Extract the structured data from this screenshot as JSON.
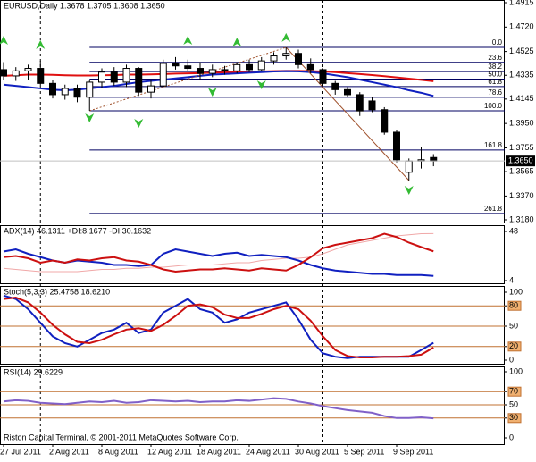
{
  "chart_data": [
    {
      "type": "candlestick",
      "title": "EURUSD,Daily  1.3678 1.3705 1.3608 1.3650",
      "categories": [
        "27 Jul 2011",
        null,
        null,
        null,
        "2 Aug 2011",
        null,
        null,
        null,
        "8 Aug 2011",
        null,
        null,
        null,
        "12 Aug 2011",
        null,
        null,
        null,
        "18 Aug 2011",
        null,
        null,
        null,
        "24 Aug 2011",
        null,
        null,
        null,
        "30 Aug 2011",
        null,
        null,
        null,
        "5 Sep 2011",
        null,
        null,
        null,
        "9 Sep 2011",
        null,
        null,
        null
      ],
      "open": [
        1.438,
        1.433,
        1.437,
        1.439,
        1.427,
        1.418,
        1.423,
        1.416,
        1.428,
        1.436,
        1.428,
        1.439,
        1.42,
        1.425,
        1.443,
        1.441,
        1.439,
        1.435,
        1.438,
        1.437,
        1.442,
        1.438,
        1.445,
        1.449,
        1.451,
        1.442,
        1.438,
        1.427,
        1.422,
        1.418,
        1.413,
        1.406,
        1.388,
        1.356,
        1.365,
        1.3678
      ],
      "high": [
        1.444,
        1.44,
        1.442,
        1.445,
        1.43,
        1.426,
        1.426,
        1.43,
        1.439,
        1.44,
        1.442,
        1.44,
        1.43,
        1.446,
        1.448,
        1.446,
        1.444,
        1.442,
        1.441,
        1.444,
        1.446,
        1.448,
        1.452,
        1.4558,
        1.454,
        1.447,
        1.439,
        1.429,
        1.424,
        1.42,
        1.416,
        1.408,
        1.39,
        1.367,
        1.376,
        1.3705
      ],
      "low": [
        1.43,
        1.429,
        1.43,
        1.425,
        1.415,
        1.414,
        1.412,
        1.4051,
        1.423,
        1.425,
        1.424,
        1.417,
        1.415,
        1.424,
        1.438,
        1.437,
        1.43,
        1.432,
        1.434,
        1.435,
        1.436,
        1.437,
        1.442,
        1.446,
        1.439,
        1.435,
        1.425,
        1.418,
        1.416,
        1.401,
        1.404,
        1.386,
        1.364,
        1.3495,
        1.359,
        1.3608
      ],
      "close": [
        1.433,
        1.437,
        1.439,
        1.427,
        1.418,
        1.423,
        1.416,
        1.428,
        1.436,
        1.428,
        1.439,
        1.42,
        1.425,
        1.443,
        1.441,
        1.439,
        1.435,
        1.438,
        1.437,
        1.442,
        1.438,
        1.445,
        1.449,
        1.451,
        1.442,
        1.438,
        1.427,
        1.422,
        1.418,
        1.405,
        1.406,
        1.388,
        1.366,
        1.365,
        1.366,
        1.365
      ],
      "up_color": "#ffffff",
      "down_color": "#000000",
      "ylim": [
        1.318,
        1.4915
      ],
      "yticks": [
        1.4915,
        {
          "value": 1.472,
          "label": "1.4720"
        },
        1.4525,
        1.4335,
        1.4145,
        {
          "value": 1.395,
          "label": "1.3950"
        },
        1.3755,
        1.3565,
        {
          "value": 1.337,
          "label": "1.3370"
        },
        {
          "value": 1.318,
          "label": "1.3180"
        }
      ],
      "current_price": {
        "value": 1.365,
        "label": "1.3650"
      },
      "series": [
        {
          "color": "#e01010",
          "values": [
            1.433,
            1.4335,
            1.434,
            1.434,
            1.4338,
            1.4335,
            1.4333,
            1.4333,
            1.4335,
            1.4337,
            1.434,
            1.434,
            1.4342,
            1.4345,
            1.4348,
            1.435,
            1.4352,
            1.4355,
            1.4357,
            1.436,
            1.4362,
            1.4365,
            1.4368,
            1.437,
            1.437,
            1.4368,
            1.4365,
            1.436,
            1.4352,
            1.4345,
            1.4337,
            1.4328,
            1.4318,
            1.4308,
            1.4298,
            1.4288
          ]
        },
        {
          "color": "#1020c0",
          "values": [
            1.426,
            1.425,
            1.424,
            1.423,
            1.422,
            1.4215,
            1.422,
            1.423,
            1.424,
            1.425,
            1.4265,
            1.428,
            1.429,
            1.43,
            1.431,
            1.432,
            1.433,
            1.434,
            1.4345,
            1.435,
            1.4355,
            1.436,
            1.4365,
            1.4368,
            1.4366,
            1.436,
            1.435,
            1.4335,
            1.432,
            1.43,
            1.428,
            1.426,
            1.424,
            1.4215,
            1.4195,
            1.417
          ]
        }
      ],
      "fib": {
        "high": 1.4558,
        "low": 1.4051,
        "color": "#000060",
        "levels": [
          {
            "value": 0,
            "label": "0.0"
          },
          23.6,
          38.2,
          {
            "value": 50,
            "label": "50.0"
          },
          61.8,
          78.6,
          {
            "value": 100,
            "label": "100.0"
          },
          161.8,
          261.8
        ]
      },
      "zigzag": {
        "x": [
          7,
          23,
          33
        ],
        "values": [
          1.4051,
          1.4558,
          1.3495
        ],
        "color": "#a0522d"
      },
      "fractals_up": {
        "x": [
          0,
          3,
          15,
          19,
          23
        ],
        "values": [
          1.4615,
          1.458,
          1.4615,
          1.46,
          1.4637
        ],
        "color": "#33bb33"
      },
      "fractals_down": {
        "x": [
          7,
          11,
          17,
          21,
          33
        ],
        "values": [
          1.3994,
          1.3951,
          1.4201,
          1.4258,
          1.3416
        ],
        "color": "#33bb33"
      },
      "separators": [
        3,
        26
      ]
    },
    {
      "type": "line",
      "title": "ADX(14) 46.1311 +DI:8.1677 -DI:30.1632",
      "ylim": [
        4,
        48
      ],
      "yticks": [
        4,
        48
      ],
      "series": [
        {
          "color": "#f0a8a8",
          "values": [
            15,
            14,
            13,
            12,
            12,
            12,
            12,
            13,
            14,
            14,
            15,
            15,
            16,
            16,
            17,
            18,
            18,
            18,
            19,
            20,
            20,
            22,
            23,
            24,
            24,
            25,
            28,
            32,
            36,
            38,
            40,
            42,
            44,
            45,
            46,
            46.1
          ]
        },
        {
          "color": "#1020c0",
          "values": [
            30,
            32,
            28,
            25,
            22,
            20,
            22,
            21,
            20,
            18,
            18,
            17,
            18,
            28,
            32,
            30,
            28,
            26,
            28,
            29,
            26,
            27,
            26,
            25,
            22,
            18,
            15,
            13,
            12,
            11,
            10,
            10,
            9,
            9,
            9,
            8.2
          ]
        },
        {
          "color": "#cc1010",
          "values": [
            25,
            26,
            24,
            20,
            22,
            20,
            23,
            22,
            24,
            25,
            22,
            21,
            18,
            14,
            12,
            13,
            14,
            14,
            15,
            14,
            13,
            15,
            14,
            13,
            18,
            25,
            33,
            36,
            38,
            40,
            42,
            46,
            43,
            38,
            34,
            30.2
          ]
        }
      ]
    },
    {
      "type": "line",
      "title": "Stoch(5,3,3) 25.4758 18.6210",
      "ylim": [
        0,
        100
      ],
      "yticks": [
        0,
        20,
        50,
        80,
        100
      ],
      "levels": [
        20,
        50,
        80
      ],
      "boxed_ticks": [
        20,
        80
      ],
      "level_color": "#c07030",
      "series": [
        {
          "color": "#1020c0",
          "values": [
            95,
            90,
            75,
            55,
            35,
            25,
            20,
            30,
            40,
            45,
            55,
            40,
            45,
            70,
            80,
            90,
            75,
            70,
            55,
            60,
            70,
            75,
            80,
            85,
            60,
            30,
            10,
            5,
            3,
            5,
            5,
            5,
            5,
            5,
            15,
            25.5
          ]
        },
        {
          "color": "#cc1010",
          "values": [
            90,
            92,
            85,
            70,
            52,
            38,
            27,
            25,
            30,
            38,
            45,
            47,
            43,
            52,
            65,
            80,
            82,
            78,
            67,
            62,
            62,
            68,
            75,
            80,
            75,
            58,
            35,
            15,
            6,
            4,
            4,
            5,
            5,
            6,
            8,
            18.6
          ]
        }
      ]
    },
    {
      "type": "line",
      "title": "RSI(14) 29.6229",
      "ylim": [
        0,
        100
      ],
      "yticks": [
        0,
        30,
        50,
        70,
        100
      ],
      "levels": [
        30,
        50,
        70
      ],
      "boxed_ticks": [
        30,
        70
      ],
      "level_color": "#c07030",
      "series": [
        {
          "color": "#8060c8",
          "values": [
            55,
            57,
            56,
            53,
            52,
            51,
            53,
            55,
            54,
            56,
            53,
            54,
            57,
            56,
            55,
            56,
            54,
            55,
            55,
            57,
            56,
            58,
            60,
            59,
            55,
            52,
            48,
            45,
            42,
            40,
            38,
            33,
            30,
            30,
            31,
            29.6
          ]
        }
      ]
    }
  ],
  "footer": "Riston Capital Terminal, © 2001-2011 MetaQuotes Software Corp."
}
